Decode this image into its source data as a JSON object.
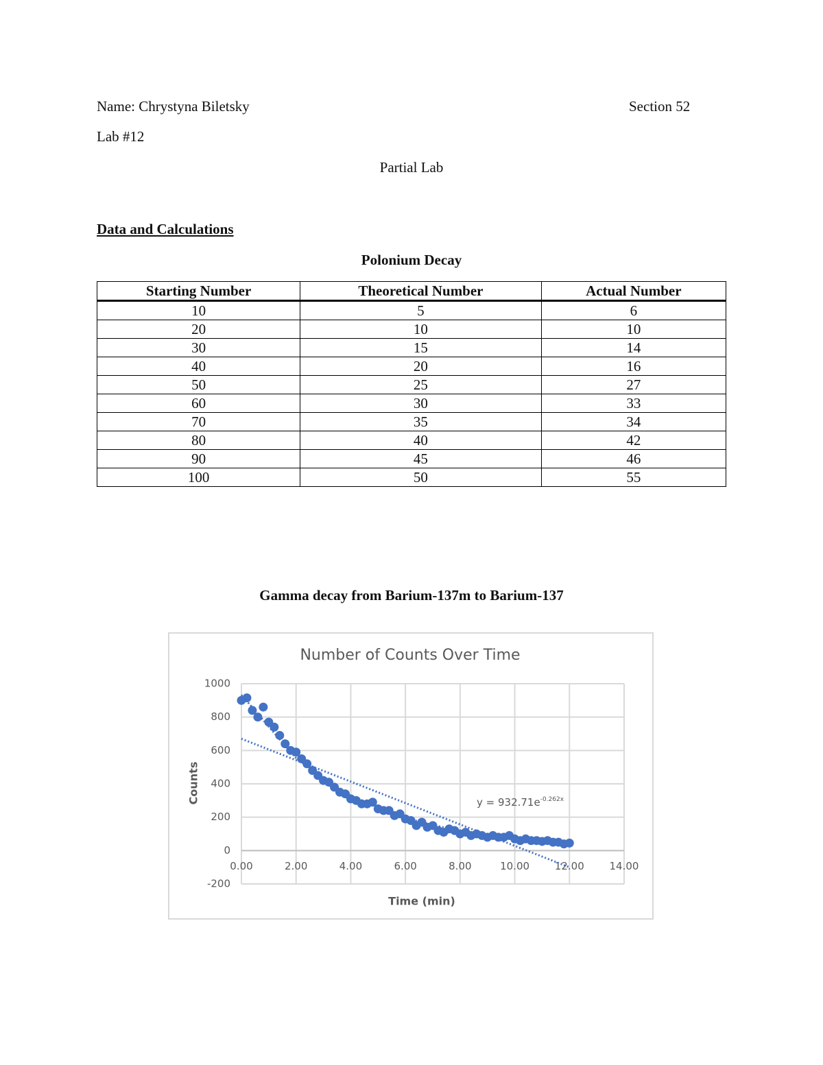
{
  "header": {
    "name": "Name: Chrystyna Biletsky",
    "section": "Section 52",
    "lab": "Lab #12",
    "subtitle": "Partial Lab"
  },
  "section_heading": "Data and Calculations",
  "table": {
    "title": "Polonium Decay",
    "columns": [
      "Starting Number",
      "Theoretical Number",
      "Actual Number"
    ],
    "rows": [
      [
        10,
        5,
        6
      ],
      [
        20,
        10,
        10
      ],
      [
        30,
        15,
        14
      ],
      [
        40,
        20,
        16
      ],
      [
        50,
        25,
        27
      ],
      [
        60,
        30,
        33
      ],
      [
        70,
        35,
        34
      ],
      [
        80,
        40,
        42
      ],
      [
        90,
        45,
        46
      ],
      [
        100,
        50,
        55
      ]
    ]
  },
  "chart_caption": "Gamma decay from Barium-137m to Barium-137",
  "chart_data": {
    "type": "scatter",
    "title": "Number of Counts Over Time",
    "x_label": "Time (min)",
    "y_label": "Counts",
    "x": [
      0,
      0.2,
      0.4,
      0.6,
      0.8,
      1.0,
      1.2,
      1.4,
      1.6,
      1.8,
      2.0,
      2.2,
      2.4,
      2.6,
      2.8,
      3.0,
      3.2,
      3.4,
      3.6,
      3.8,
      4.0,
      4.2,
      4.4,
      4.6,
      4.8,
      5.0,
      5.2,
      5.4,
      5.6,
      5.8,
      6.0,
      6.2,
      6.4,
      6.6,
      6.8,
      7.0,
      7.2,
      7.4,
      7.6,
      7.8,
      8.0,
      8.2,
      8.4,
      8.6,
      8.8,
      9.0,
      9.2,
      9.4,
      9.6,
      9.8,
      10.0,
      10.2,
      10.4,
      10.6,
      10.8,
      11.0,
      11.2,
      11.4,
      11.6,
      11.8,
      12.0
    ],
    "series": [
      {
        "color": "#4472c4",
        "values": [
          900,
          915,
          840,
          800,
          860,
          770,
          740,
          690,
          640,
          600,
          590,
          550,
          520,
          480,
          450,
          420,
          410,
          380,
          350,
          340,
          310,
          300,
          280,
          280,
          290,
          250,
          240,
          240,
          210,
          220,
          190,
          180,
          150,
          170,
          140,
          150,
          120,
          110,
          130,
          120,
          100,
          110,
          90,
          100,
          90,
          80,
          90,
          80,
          80,
          90,
          70,
          60,
          70,
          60,
          60,
          55,
          60,
          50,
          50,
          40,
          45
        ]
      }
    ],
    "trendlines": [
      {
        "x": [
          0,
          12
        ],
        "values": [
          670,
          -100
        ]
      },
      {
        "x": [
          0,
          2,
          4,
          6,
          8,
          10,
          12
        ],
        "values": [
          933,
          553,
          328,
          194,
          115,
          68,
          40
        ]
      }
    ],
    "trendline_label": {
      "text": "y = 932.71e",
      "exponent": "-0.262x"
    },
    "xlim": [
      0,
      14
    ],
    "xticks": [
      {
        "value": 0,
        "label": "0.00"
      },
      {
        "value": 2,
        "label": "2.00"
      },
      {
        "value": 4,
        "label": "4.00"
      },
      {
        "value": 6,
        "label": "6.00"
      },
      {
        "value": 8,
        "label": "8.00"
      },
      {
        "value": 10,
        "label": "10.00"
      },
      {
        "value": 12,
        "label": "12.00"
      },
      {
        "value": 14,
        "label": "14.00"
      }
    ],
    "ylim": [
      -200,
      1000
    ],
    "yticks": [
      -200,
      0,
      200,
      400,
      600,
      800,
      1000
    ],
    "grid": true
  }
}
